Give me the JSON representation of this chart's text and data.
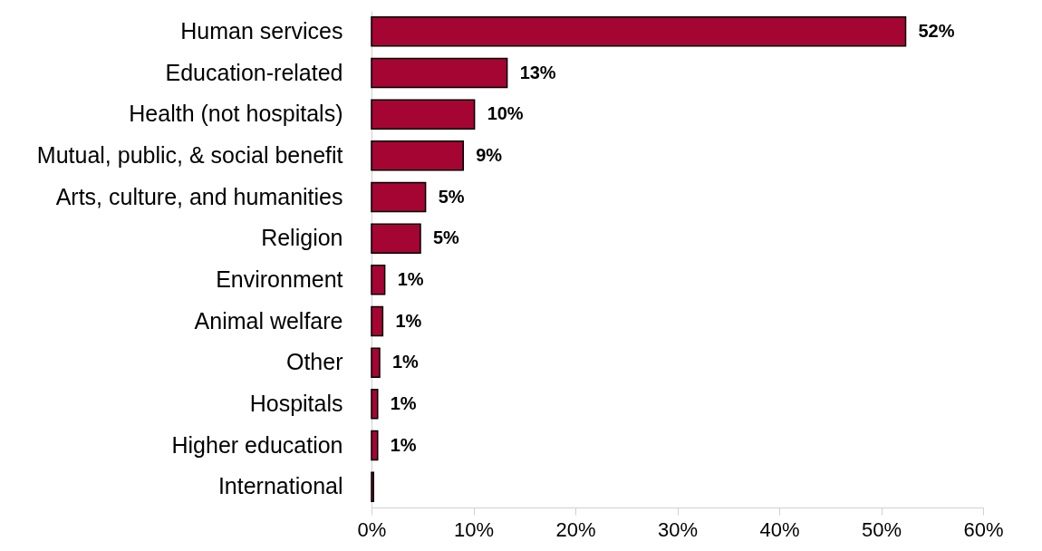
{
  "chart_data": {
    "type": "bar",
    "orientation": "horizontal",
    "categories": [
      "Human services",
      "Education-related",
      "Health (not hospitals)",
      "Mutual, public, & social benefit",
      "Arts, culture, and humanities",
      "Religion",
      "Environment",
      "Animal welfare",
      "Other ",
      "Hospitals",
      "Higher education",
      "International"
    ],
    "values": [
      52.4,
      13.3,
      10.1,
      9.0,
      5.3,
      4.8,
      1.3,
      1.1,
      0.8,
      0.6,
      0.6,
      0.2
    ],
    "value_labels": [
      "52%",
      "13%",
      "10%",
      "9%",
      "5%",
      "5%",
      "1%",
      "1%",
      "1%",
      "1%",
      "1%",
      null
    ],
    "color": "#a50533",
    "xlim": [
      0,
      60
    ],
    "xticks": [
      {
        "value": 0,
        "label": "0%"
      },
      {
        "value": 10,
        "label": "10%"
      },
      {
        "value": 20,
        "label": "20%"
      },
      {
        "value": 30,
        "label": "30%"
      },
      {
        "value": 40,
        "label": "40%"
      },
      {
        "value": 50,
        "label": "50%"
      },
      {
        "value": 60,
        "label": "60%"
      }
    ],
    "grid": false
  }
}
